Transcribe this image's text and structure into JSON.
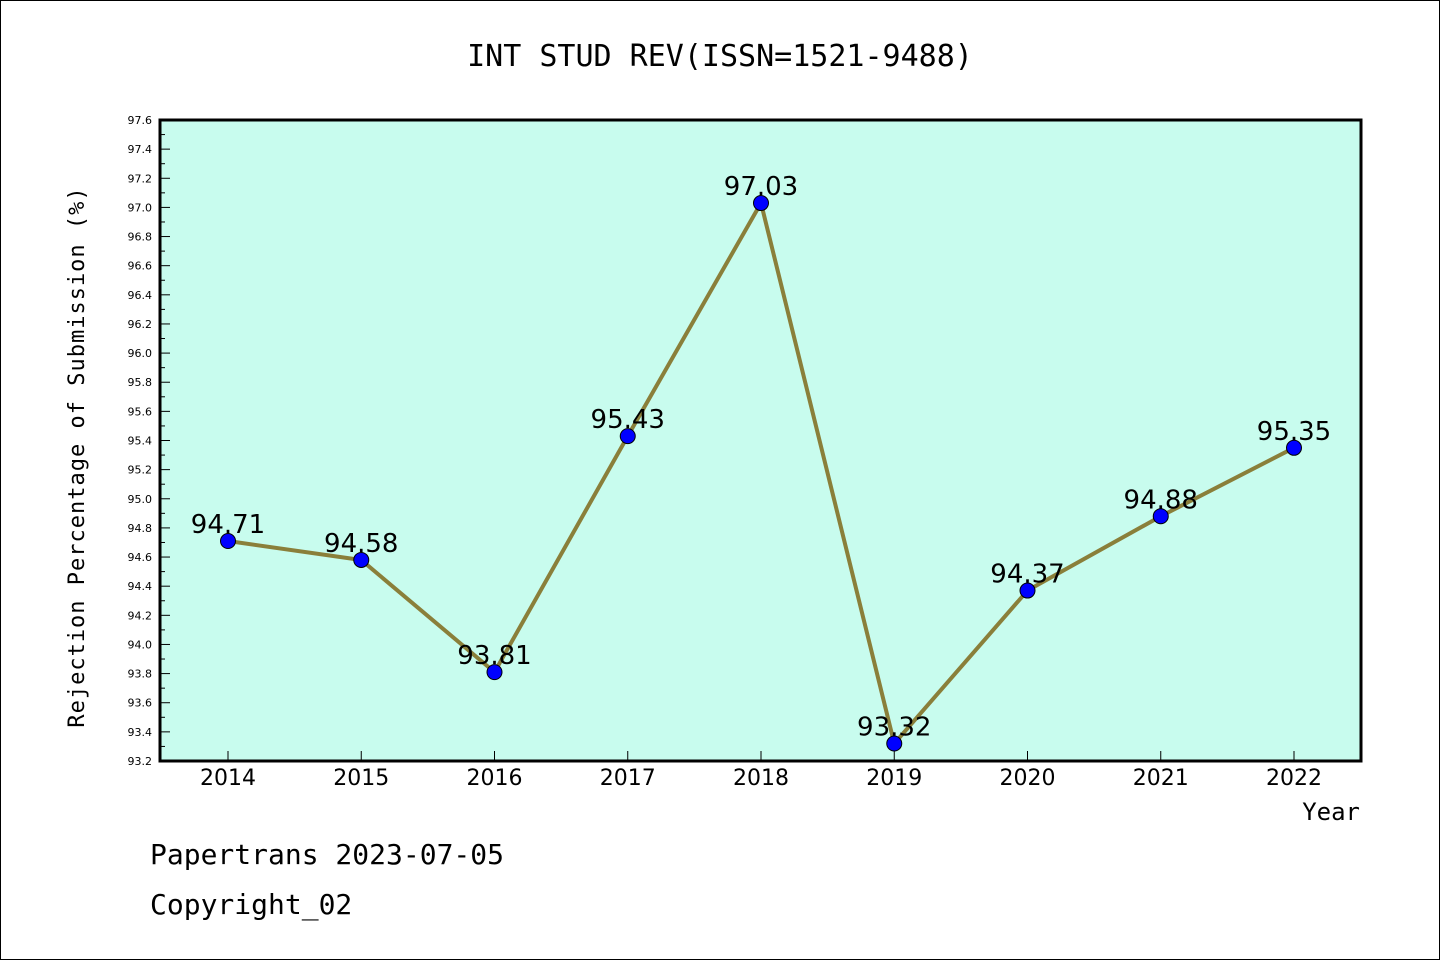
{
  "chart_data": {
    "type": "line",
    "title": "INT STUD REV(ISSN=1521-9488)",
    "xlabel": "Year",
    "ylabel": "Rejection Percentage of Submission (%)",
    "categories": [
      "2014",
      "2015",
      "2016",
      "2017",
      "2018",
      "2019",
      "2020",
      "2021",
      "2022"
    ],
    "series": [
      {
        "values": [
          94.71,
          94.58,
          93.81,
          95.43,
          97.03,
          93.32,
          94.37,
          94.88,
          95.35
        ],
        "labels": [
          "94.71",
          "94.58",
          "93.81",
          "95.43",
          "97.03",
          "93.32",
          "94.37",
          "94.88",
          "95.35"
        ],
        "line_color": "#8a7f3a",
        "marker_color": "#0000ff"
      }
    ],
    "ylim": [
      93.2,
      97.6
    ],
    "yticks": [
      "93.2",
      "93.4",
      "93.6",
      "93.8",
      "94.0",
      "94.2",
      "94.4",
      "94.6",
      "94.8",
      "95.0",
      "95.2",
      "95.4",
      "95.6",
      "95.8",
      "96.0",
      "96.2",
      "96.4",
      "96.6",
      "96.8",
      "97.0",
      "97.2",
      "97.4",
      "97.6"
    ],
    "plot_background": "#c8fcee",
    "grid": false,
    "legend": "none"
  },
  "footer": {
    "line1": "Papertrans 2023-07-05",
    "line2": "Copyright_02"
  }
}
